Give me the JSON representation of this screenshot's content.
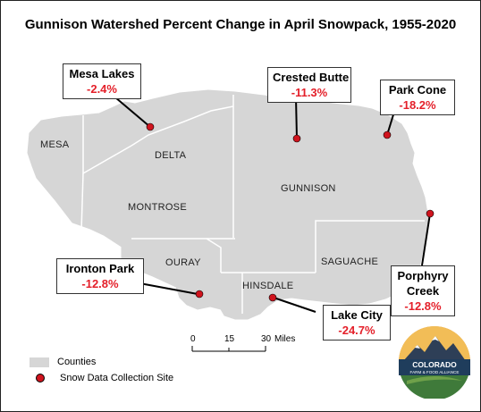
{
  "title": "Gunnison Watershed Percent Change in April Snowpack, 1955-2020",
  "counties": [
    {
      "id": "mesa",
      "label": "MESA"
    },
    {
      "id": "delta",
      "label": "DELTA"
    },
    {
      "id": "montrose",
      "label": "MONTROSE"
    },
    {
      "id": "gunnison",
      "label": "GUNNISON"
    },
    {
      "id": "ouray",
      "label": "OURAY"
    },
    {
      "id": "hinsdale",
      "label": "HINSDALE"
    },
    {
      "id": "saguache",
      "label": "SAGUACHE"
    }
  ],
  "sites": [
    {
      "name": "Mesa Lakes",
      "change": "-2.4%"
    },
    {
      "name": "Crested Butte",
      "change": "-11.3%"
    },
    {
      "name": "Park Cone",
      "change": "-18.2%"
    },
    {
      "name": "Porphyry Creek",
      "name_line1": "Porphyry",
      "name_line2": "Creek",
      "change": "-12.8%"
    },
    {
      "name": "Ironton Park",
      "change": "-12.8%"
    },
    {
      "name": "Lake City",
      "change": "-24.7%"
    }
  ],
  "scale_bar": {
    "ticks": [
      "0",
      "15",
      "30"
    ],
    "unit": "Miles"
  },
  "legend": {
    "counties_label": "Counties",
    "site_label": "Snow Data Collection Site"
  },
  "logo": {
    "line1": "COLORADO",
    "line2": "FARM & FOOD ALLIANCE"
  },
  "colors": {
    "county_fill": "#d6d6d6",
    "county_border": "#ffffff",
    "site_dot": "#d0141e",
    "change_text": "#e4202a"
  }
}
